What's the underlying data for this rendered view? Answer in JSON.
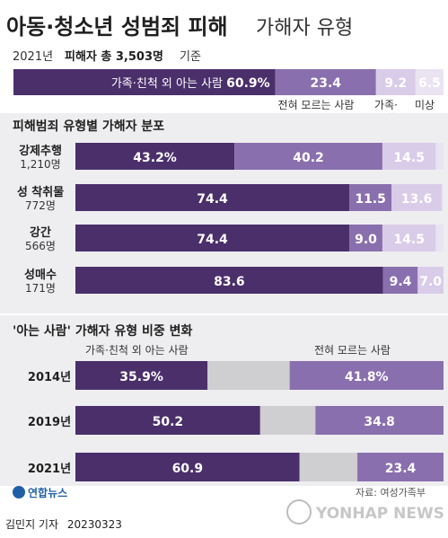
{
  "title": {
    "bold": "아동·청소년 성범죄 피해",
    "light": "가해자 유형"
  },
  "subtitle": {
    "prefix": "2021년",
    "bold": "피해자 총 3,503명",
    "suffix": "기준"
  },
  "colors": {
    "dark_purple": "#4a2f6b",
    "mid_purple": "#8a6fae",
    "light_lavender": "#d9cce8",
    "pale_lavender": "#eae3f1",
    "gray": "#cfcfd1",
    "section_bg": "#eeeef0"
  },
  "chart_data": [
    {
      "type": "bar",
      "orientation": "horizontal-stacked-100",
      "categories": [
        "2021년 전체"
      ],
      "series": [
        {
          "name": "가족·친척 외 아는 사람",
          "values": [
            60.9
          ]
        },
        {
          "name": "전혀 모르는 사람",
          "values": [
            23.4
          ]
        },
        {
          "name": "가족·친척",
          "values": [
            9.2
          ]
        },
        {
          "name": "미상",
          "values": [
            6.5
          ]
        }
      ],
      "first_label": "가족·친척 외 아는 사람",
      "legend_below": [
        "전혀 모르는 사람",
        "가족·",
        "친척",
        "미상"
      ]
    },
    {
      "type": "bar",
      "title": "피해범죄 유형별 가해자 분포",
      "orientation": "horizontal-stacked-100",
      "rows": [
        {
          "label": "강제추행",
          "count": "1,210명",
          "values": [
            43.2,
            40.2,
            14.5,
            2.1
          ],
          "display": [
            "43.2%",
            "40.2",
            "14.5",
            ""
          ]
        },
        {
          "label": "성 착취물",
          "count": "772명",
          "values": [
            74.4,
            11.5,
            13.6,
            0.5
          ],
          "display": [
            "74.4",
            "11.5",
            "13.6",
            ""
          ]
        },
        {
          "label": "강간",
          "count": "566명",
          "values": [
            74.4,
            9.0,
            14.5,
            2.1
          ],
          "display": [
            "74.4",
            "9.0",
            "14.5",
            ""
          ]
        },
        {
          "label": "성매수",
          "count": "171명",
          "values": [
            83.6,
            9.4,
            7.0,
            0
          ],
          "display": [
            "83.6",
            "9.4",
            "7.0",
            ""
          ]
        }
      ]
    },
    {
      "type": "bar",
      "title": "'아는 사람' 가해자 유형 비중 변화",
      "orientation": "horizontal-split",
      "legend": [
        "가족·친척 외 아는 사람",
        "전혀 모르는 사람"
      ],
      "rows": [
        {
          "label": "2014년",
          "acquaintance": 35.9,
          "stranger": 41.8,
          "display": [
            "35.9%",
            "41.8%"
          ]
        },
        {
          "label": "2019년",
          "acquaintance": 50.2,
          "stranger": 34.8,
          "display": [
            "50.2",
            "34.8"
          ]
        },
        {
          "label": "2021년",
          "acquaintance": 60.9,
          "stranger": 23.4,
          "display": [
            "60.9",
            "23.4"
          ]
        }
      ]
    }
  ],
  "source": "자료: 여성가족부",
  "logo_left": "연합뉴스",
  "logo_right": "YONHAP NEWS",
  "credit": {
    "author": "김민지 기자",
    "date": "20230323"
  }
}
